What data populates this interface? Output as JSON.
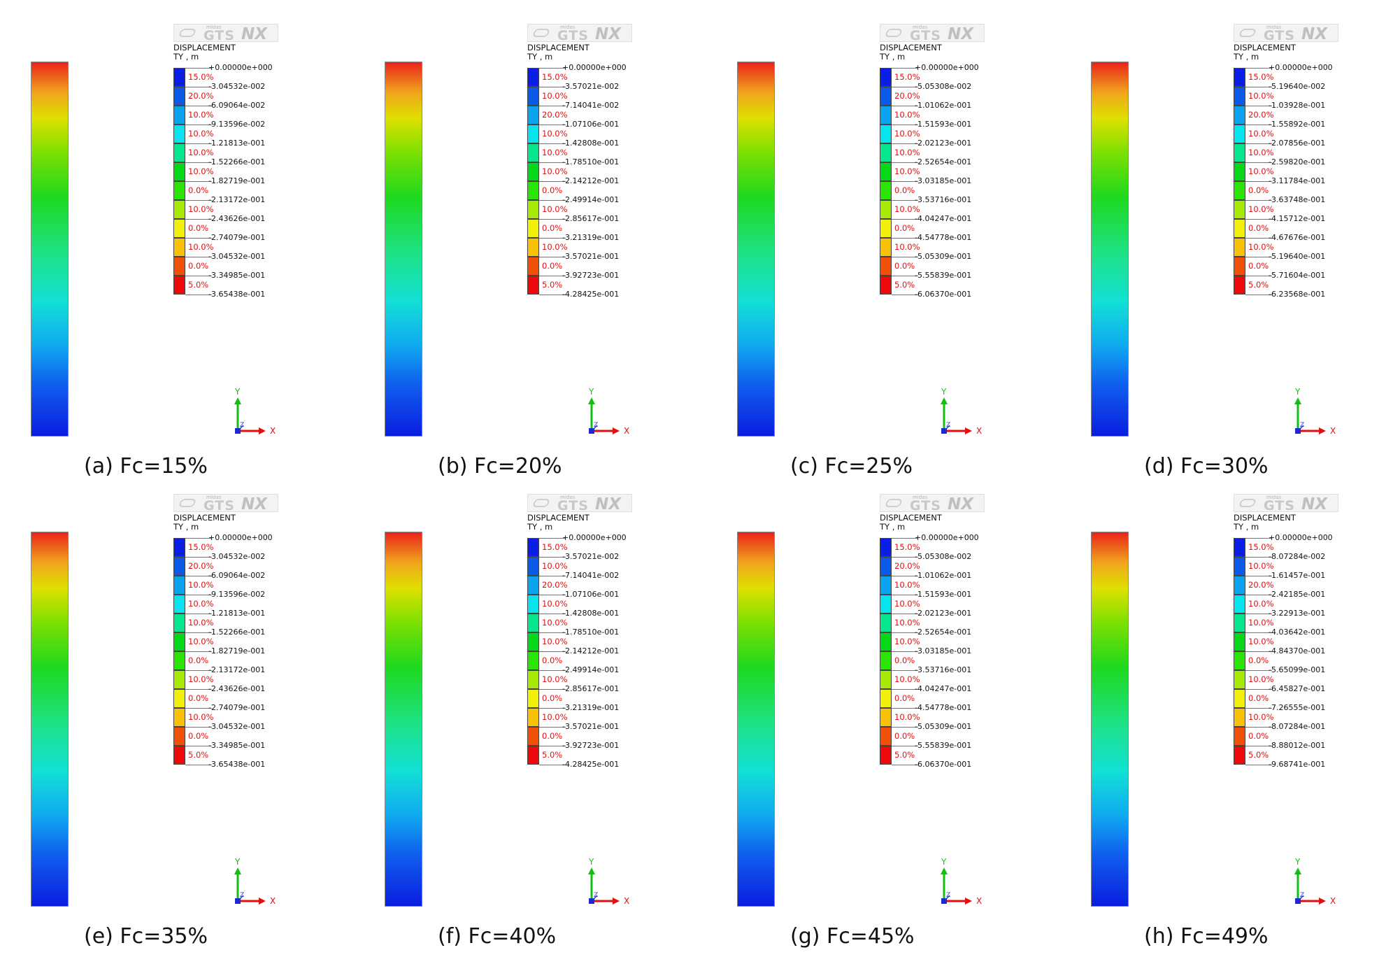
{
  "panels": [
    {
      "caption": "(a)  Fc=15%",
      "values": [
        "+0.00000e+000",
        "-3.04532e-002",
        "-6.09064e-002",
        "-9.13596e-002",
        "-1.21813e-001",
        "-1.52266e-001",
        "-1.82719e-001",
        "-2.13172e-001",
        "-2.43626e-001",
        "-2.74079e-001",
        "-3.04532e-001",
        "-3.34985e-001",
        "-3.65438e-001"
      ],
      "percents": [
        "15.0%",
        "20.0%",
        "10.0%",
        "10.0%",
        "10.0%",
        "10.0%",
        "0.0%",
        "10.0%",
        "0.0%",
        "10.0%",
        "0.0%",
        "5.0%"
      ]
    },
    {
      "caption": "(b)  Fc=20%",
      "values": [
        "+0.00000e+000",
        "-3.57021e-002",
        "-7.14041e-002",
        "-1.07106e-001",
        "-1.42808e-001",
        "-1.78510e-001",
        "-2.14212e-001",
        "-2.49914e-001",
        "-2.85617e-001",
        "-3.21319e-001",
        "-3.57021e-001",
        "-3.92723e-001",
        "-4.28425e-001"
      ],
      "percents": [
        "15.0%",
        "10.0%",
        "20.0%",
        "10.0%",
        "10.0%",
        "10.0%",
        "0.0%",
        "10.0%",
        "0.0%",
        "10.0%",
        "0.0%",
        "5.0%"
      ]
    },
    {
      "caption": "(c)  Fc=25%",
      "values": [
        "+0.00000e+000",
        "-5.05308e-002",
        "-1.01062e-001",
        "-1.51593e-001",
        "-2.02123e-001",
        "-2.52654e-001",
        "-3.03185e-001",
        "-3.53716e-001",
        "-4.04247e-001",
        "-4.54778e-001",
        "-5.05309e-001",
        "-5.55839e-001",
        "-6.06370e-001"
      ],
      "percents": [
        "15.0%",
        "20.0%",
        "10.0%",
        "10.0%",
        "10.0%",
        "10.0%",
        "0.0%",
        "10.0%",
        "0.0%",
        "10.0%",
        "0.0%",
        "5.0%"
      ]
    },
    {
      "caption": "(d)  Fc=30%",
      "values": [
        "+0.00000e+000",
        "-5.19640e-002",
        "-1.03928e-001",
        "-1.55892e-001",
        "-2.07856e-001",
        "-2.59820e-001",
        "-3.11784e-001",
        "-3.63748e-001",
        "-4.15712e-001",
        "-4.67676e-001",
        "-5.19640e-001",
        "-5.71604e-001",
        "-6.23568e-001"
      ],
      "percents": [
        "15.0%",
        "10.0%",
        "20.0%",
        "10.0%",
        "10.0%",
        "10.0%",
        "0.0%",
        "10.0%",
        "0.0%",
        "10.0%",
        "0.0%",
        "5.0%"
      ]
    },
    {
      "caption": "(e)  Fc=35%",
      "values": [
        "+0.00000e+000",
        "-3.04532e-002",
        "-6.09064e-002",
        "-9.13596e-002",
        "-1.21813e-001",
        "-1.52266e-001",
        "-1.82719e-001",
        "-2.13172e-001",
        "-2.43626e-001",
        "-2.74079e-001",
        "-3.04532e-001",
        "-3.34985e-001",
        "-3.65438e-001"
      ],
      "percents": [
        "15.0%",
        "20.0%",
        "10.0%",
        "10.0%",
        "10.0%",
        "10.0%",
        "0.0%",
        "10.0%",
        "0.0%",
        "10.0%",
        "0.0%",
        "5.0%"
      ]
    },
    {
      "caption": "(f)  Fc=40%",
      "values": [
        "+0.00000e+000",
        "-3.57021e-002",
        "-7.14041e-002",
        "-1.07106e-001",
        "-1.42808e-001",
        "-1.78510e-001",
        "-2.14212e-001",
        "-2.49914e-001",
        "-2.85617e-001",
        "-3.21319e-001",
        "-3.57021e-001",
        "-3.92723e-001",
        "-4.28425e-001"
      ],
      "percents": [
        "15.0%",
        "10.0%",
        "20.0%",
        "10.0%",
        "10.0%",
        "10.0%",
        "0.0%",
        "10.0%",
        "0.0%",
        "10.0%",
        "0.0%",
        "5.0%"
      ]
    },
    {
      "caption": "(g)  Fc=45%",
      "values": [
        "+0.00000e+000",
        "-5.05308e-002",
        "-1.01062e-001",
        "-1.51593e-001",
        "-2.02123e-001",
        "-2.52654e-001",
        "-3.03185e-001",
        "-3.53716e-001",
        "-4.04247e-001",
        "-4.54778e-001",
        "-5.05309e-001",
        "-5.55839e-001",
        "-6.06370e-001"
      ],
      "percents": [
        "15.0%",
        "20.0%",
        "10.0%",
        "10.0%",
        "10.0%",
        "10.0%",
        "0.0%",
        "10.0%",
        "0.0%",
        "10.0%",
        "0.0%",
        "5.0%"
      ]
    },
    {
      "caption": "(h)  Fc=49%",
      "values": [
        "+0.00000e+000",
        "-8.07284e-002",
        "-1.61457e-001",
        "-2.42185e-001",
        "-3.22913e-001",
        "-4.03642e-001",
        "-4.84370e-001",
        "-5.65099e-001",
        "-6.45827e-001",
        "-7.26555e-001",
        "-8.07284e-001",
        "-8.88012e-001",
        "-9.68741e-001"
      ],
      "percents": [
        "15.0%",
        "10.0%",
        "20.0%",
        "10.0%",
        "10.0%",
        "10.0%",
        "0.0%",
        "10.0%",
        "0.0%",
        "10.0%",
        "0.0%",
        "5.0%"
      ]
    }
  ],
  "legend": {
    "title": "DISPLACEMENT",
    "unit": "TY , m",
    "swatch_colors": [
      "#0a1ee6",
      "#0a5ae8",
      "#0aa4ee",
      "#06e4f0",
      "#06e68c",
      "#06d81a",
      "#2ce406",
      "#a8e806",
      "#f0f00a",
      "#f8c006",
      "#f0500a",
      "#ee0a0a"
    ]
  },
  "logo": {
    "small": "midas",
    "brand": "GTS",
    "suffix": "NX"
  },
  "axis": {
    "y_label": "Y",
    "x_label": "X",
    "z_label": "Z"
  }
}
